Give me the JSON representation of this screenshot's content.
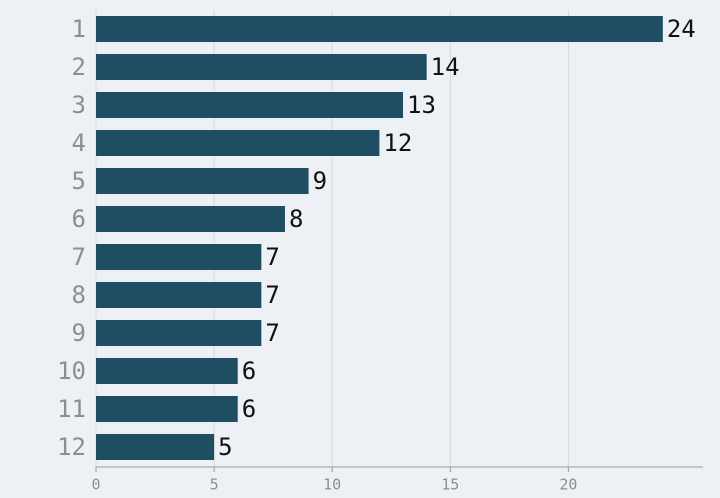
{
  "chart_data": {
    "type": "bar",
    "orientation": "horizontal",
    "categories": [
      "1",
      "2",
      "3",
      "4",
      "5",
      "6",
      "7",
      "8",
      "9",
      "10",
      "11",
      "12"
    ],
    "values": [
      24,
      14,
      13,
      12,
      9,
      8,
      7,
      7,
      7,
      6,
      6,
      5
    ],
    "color": "#1f4e63",
    "xlim": [
      0,
      25.7
    ],
    "xticks": [
      0,
      5,
      10,
      15,
      20
    ],
    "grid": true
  }
}
